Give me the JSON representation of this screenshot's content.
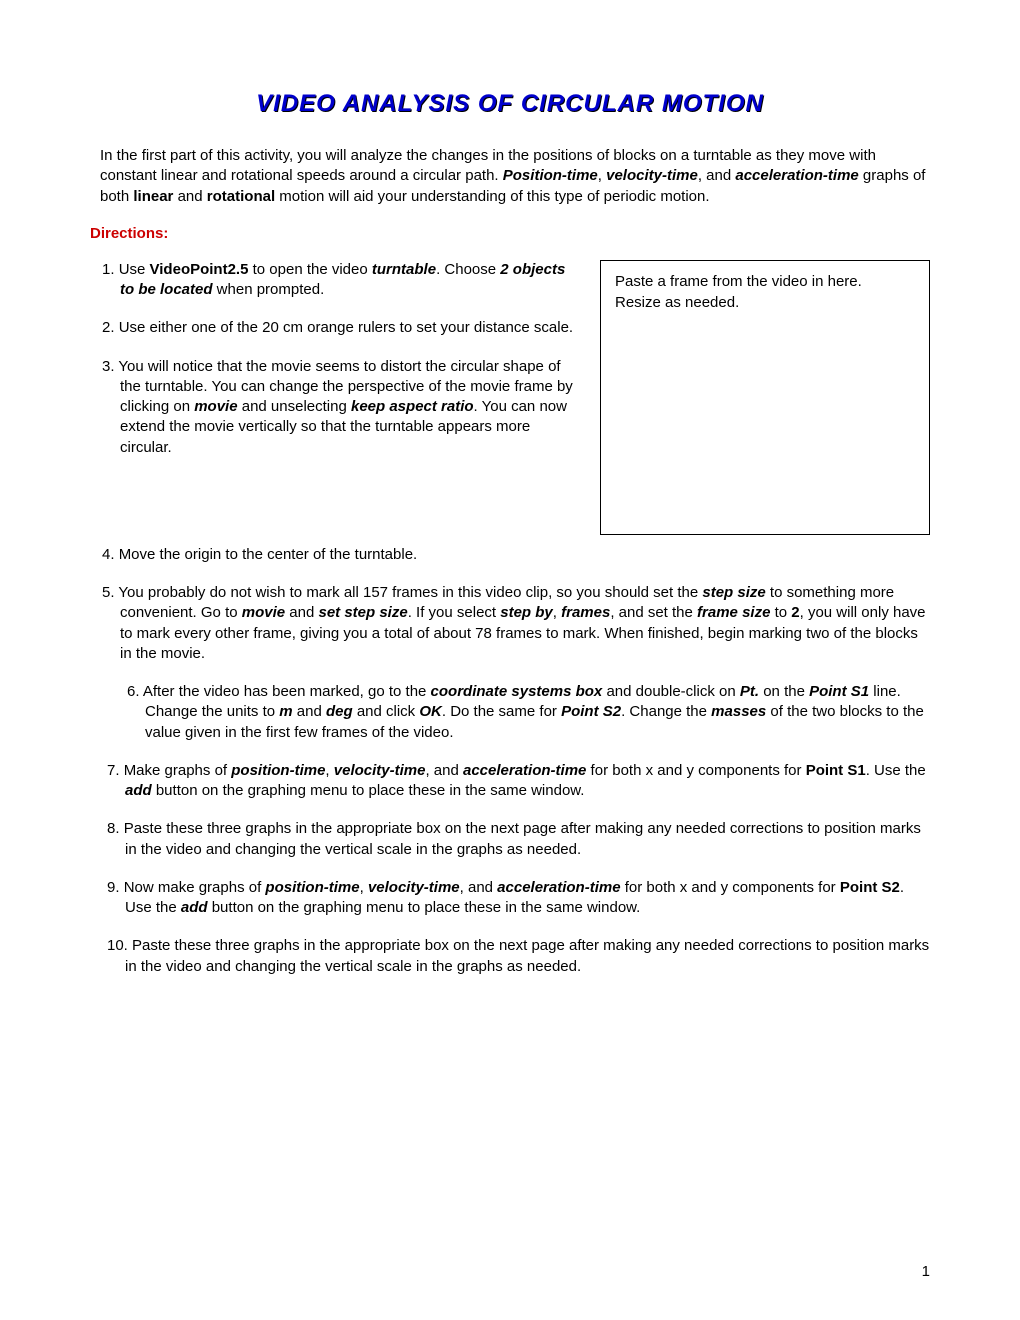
{
  "title": "VIDEO ANALYSIS OF CIRCULAR MOTION",
  "intro_parts": {
    "p1": "In the first part of this activity, you will analyze the changes in the positions of blocks on a turntable as they move with constant linear and rotational speeds around a circular path.  ",
    "position_time": "Position-time",
    "comma1": ", ",
    "velocity_time": "velocity-time",
    "and1": ", and ",
    "accel_time": "acceleration-time",
    "p2": " graphs of both ",
    "linear": "linear",
    "and2": " and ",
    "rotational": "rotational",
    "p3": " motion will aid your understanding of this type of periodic motion."
  },
  "directions_label": "Directions:",
  "video_box": {
    "line1": "Paste a frame from the video in here.",
    "line2": "Resize as needed."
  },
  "steps": {
    "s1": {
      "num": "1. ",
      "t1": "Use ",
      "videopoint": "VideoPoint2.5",
      "t2": " to open the video ",
      "turntable": "turntable",
      "t3": ". Choose ",
      "objects": "2 objects to be located",
      "t4": " when prompted."
    },
    "s2": {
      "num": "2. ",
      "text": "Use either one of the 20 cm orange rulers to set your distance scale."
    },
    "s3": {
      "num": "3. ",
      "t1": "You will notice that the movie seems to distort the circular shape of the turntable. You can change the perspective of the movie frame by clicking on ",
      "movie": "movie",
      "t2": " and unselecting ",
      "aspect": "keep aspect ratio",
      "t3": ". You can now extend the movie vertically so that the turntable appears more circular."
    },
    "s4": {
      "num": "4. ",
      "text": "Move the origin to the center of the turntable."
    },
    "s5": {
      "num": "5. ",
      "t1": "You probably do not wish to mark all 157 frames in this video clip, so you should set the ",
      "stepsize": "step size",
      "t2": " to something more convenient.  Go to ",
      "movie": "movie",
      "t3": " and ",
      "setstep": "set step size",
      "t4": ". If you select ",
      "stepby": "step by",
      "t5": ", ",
      "frames": "frames",
      "t6": ", and set the ",
      "framesize": "frame size",
      "t7": " to ",
      "two": "2",
      "t8": ", you will only have to mark every other frame, giving you a total of about 78 frames to mark.  When finished, begin marking two of the blocks in the movie."
    },
    "s6": {
      "num": "6. ",
      "t1": "After the video has been marked, go to the ",
      "coordbox": "coordinate systems box",
      "t2": " and double-click on ",
      "pt": "Pt.",
      "t3": " on the ",
      "points1": "Point S1",
      "t4": " line.  Change the units to ",
      "m": "m",
      "t5": " and ",
      "deg": "deg",
      "t6": " and click ",
      "ok": "OK",
      "t7": ".  Do the same for ",
      "points2": "Point S2",
      "t8": ". Change the ",
      "masses": "masses",
      "t9": " of the two blocks to the value given in the first few frames of the video."
    },
    "s7": {
      "num": "7. ",
      "t1": "Make graphs of ",
      "pt": "position-time",
      "c1": ", ",
      "vt": "velocity-time",
      "c2": ", and ",
      "at": "acceleration-time",
      "t2": " for both x and y components for ",
      "points1": "Point S1",
      "t3": ".  Use the ",
      "add": "add",
      "t4": " button on the graphing menu to place these in the same window."
    },
    "s8": {
      "num": "8. ",
      "text": "Paste these three graphs in the appropriate box on the next page after making any needed corrections to position marks in the video and changing the vertical scale in the graphs as needed."
    },
    "s9": {
      "num": "9. ",
      "t1": "Now make graphs of ",
      "pt": "position-time",
      "c1": ", ",
      "vt": "velocity-time",
      "c2": ", and ",
      "at": "acceleration-time",
      "t2": " for both x and y components for ",
      "points2": "Point S2",
      "t3": ".  Use the ",
      "add": "add",
      "t4": " button on the graphing menu to place these in the same window."
    },
    "s10": {
      "num": "10. ",
      "text": "Paste these three graphs in the appropriate box on the next page after making any needed corrections to position marks in the video and changing the vertical scale in the graphs as needed."
    }
  },
  "page_number": "1"
}
